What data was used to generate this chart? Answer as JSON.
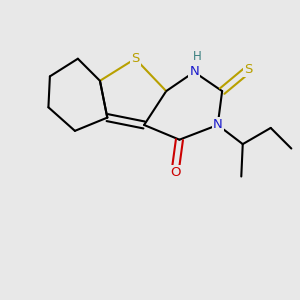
{
  "bg_color": "#e8e8e8",
  "atom_colors": {
    "S_thio": "#b8a000",
    "S_thione": "#b8a000",
    "N": "#1a1acc",
    "O": "#cc0000",
    "H": "#3a8080",
    "C": "#000000"
  }
}
